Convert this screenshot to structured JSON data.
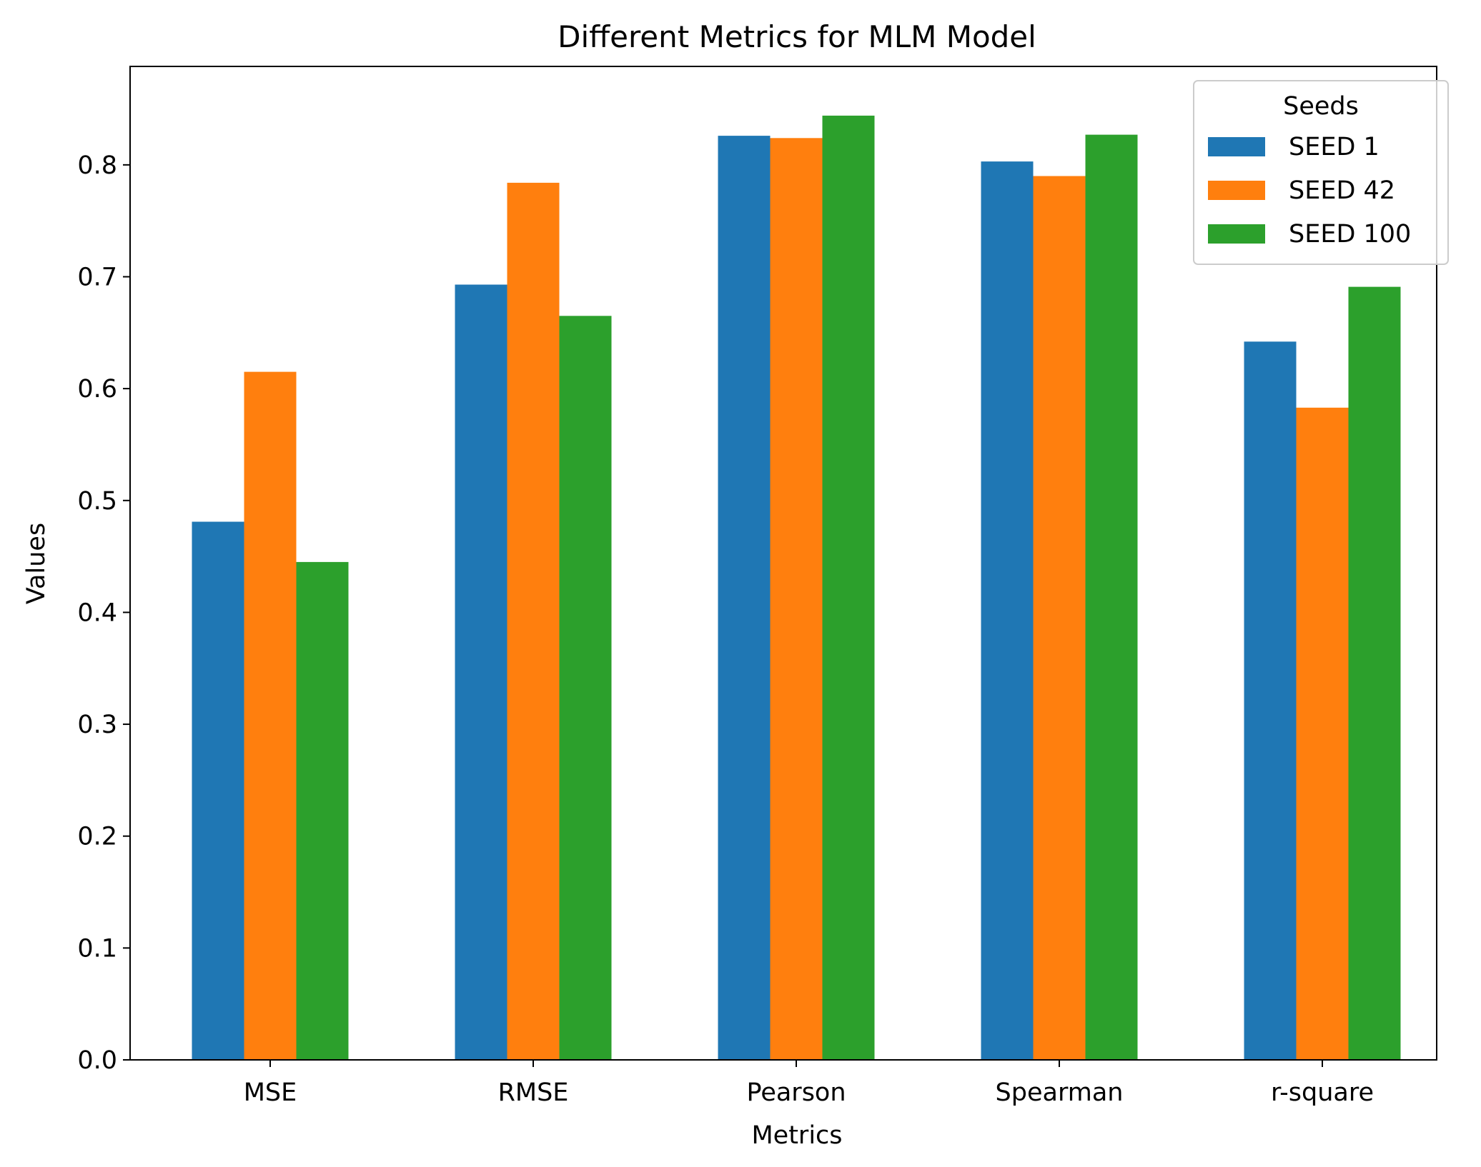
{
  "chart_data": {
    "type": "bar",
    "title": "Different Metrics for MLM Model",
    "xlabel": "Metrics",
    "ylabel": "Values",
    "categories": [
      "MSE",
      "RMSE",
      "Pearson",
      "Spearman",
      "r-square"
    ],
    "series": [
      {
        "name": "SEED 1",
        "color": "#1f77b4",
        "values": [
          0.481,
          0.693,
          0.826,
          0.803,
          0.642
        ]
      },
      {
        "name": "SEED 42",
        "color": "#ff7f0e",
        "values": [
          0.615,
          0.784,
          0.824,
          0.79,
          0.583
        ]
      },
      {
        "name": "SEED 100",
        "color": "#2ca02c",
        "values": [
          0.445,
          0.665,
          0.844,
          0.827,
          0.691
        ]
      }
    ],
    "ylim": [
      0,
      0.888
    ],
    "yticks": [
      "0.0",
      "0.1",
      "0.2",
      "0.3",
      "0.4",
      "0.5",
      "0.6",
      "0.7",
      "0.8"
    ],
    "legend": {
      "title": "Seeds",
      "position": "top-right"
    },
    "grid": false
  }
}
